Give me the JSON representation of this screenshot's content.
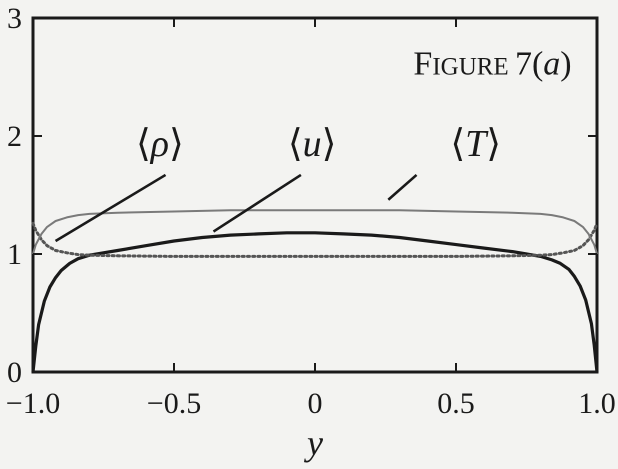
{
  "chart_data": {
    "type": "line",
    "title": "Figure 7(a)",
    "title_parts": {
      "smallcaps_initial": "F",
      "smallcaps_rest": "IGURE",
      "number": "7",
      "panel": "a"
    },
    "xlabel": "y",
    "ylabel": "",
    "xlim": [
      -1.0,
      1.0
    ],
    "ylim": [
      0,
      3
    ],
    "xticks": [
      -1.0,
      -0.5,
      0,
      0.5,
      1.0
    ],
    "xtick_labels": [
      "−1.0",
      "−0.5",
      "0",
      "0.5",
      "1.0"
    ],
    "yticks": [
      0,
      1,
      2,
      3
    ],
    "ytick_labels": [
      "0",
      "1",
      "2",
      "3"
    ],
    "grid": false,
    "legend": "none",
    "series": [
      {
        "name": "⟨u⟩",
        "style": "solid-thick",
        "color": "#1a1a1a",
        "x": [
          -1.0,
          -0.99,
          -0.98,
          -0.96,
          -0.94,
          -0.92,
          -0.9,
          -0.87,
          -0.84,
          -0.8,
          -0.75,
          -0.7,
          -0.6,
          -0.5,
          -0.4,
          -0.3,
          -0.2,
          -0.1,
          0.0,
          0.1,
          0.2,
          0.3,
          0.4,
          0.5,
          0.6,
          0.7,
          0.75,
          0.8,
          0.84,
          0.87,
          0.9,
          0.92,
          0.94,
          0.96,
          0.98,
          0.99,
          1.0
        ],
        "y": [
          0.0,
          0.22,
          0.4,
          0.6,
          0.72,
          0.8,
          0.86,
          0.92,
          0.96,
          0.99,
          1.01,
          1.03,
          1.07,
          1.11,
          1.14,
          1.16,
          1.17,
          1.18,
          1.18,
          1.17,
          1.16,
          1.14,
          1.11,
          1.08,
          1.05,
          1.02,
          1.0,
          0.98,
          0.95,
          0.92,
          0.87,
          0.81,
          0.73,
          0.61,
          0.41,
          0.23,
          0.0
        ]
      },
      {
        "name": "⟨ρ⟩",
        "style": "dotted",
        "color": "#555555",
        "x": [
          -1.0,
          -0.99,
          -0.97,
          -0.95,
          -0.92,
          -0.88,
          -0.84,
          -0.8,
          -0.7,
          -0.5,
          -0.3,
          0.0,
          0.3,
          0.5,
          0.7,
          0.8,
          0.84,
          0.88,
          0.92,
          0.95,
          0.97,
          0.99,
          1.0
        ],
        "y": [
          1.26,
          1.2,
          1.12,
          1.07,
          1.03,
          1.01,
          0.995,
          0.99,
          0.985,
          0.98,
          0.98,
          0.98,
          0.98,
          0.98,
          0.985,
          0.99,
          0.995,
          1.01,
          1.03,
          1.07,
          1.12,
          1.2,
          1.26
        ]
      },
      {
        "name": "⟨T⟩",
        "style": "thin",
        "color": "#7a7a7a",
        "x": [
          -1.0,
          -0.99,
          -0.97,
          -0.95,
          -0.92,
          -0.88,
          -0.84,
          -0.8,
          -0.7,
          -0.5,
          -0.3,
          0.0,
          0.3,
          0.5,
          0.7,
          0.8,
          0.84,
          0.88,
          0.92,
          0.95,
          0.97,
          0.99,
          1.0
        ],
        "y": [
          1.0,
          1.08,
          1.17,
          1.23,
          1.28,
          1.31,
          1.33,
          1.34,
          1.35,
          1.36,
          1.37,
          1.37,
          1.37,
          1.36,
          1.35,
          1.34,
          1.33,
          1.31,
          1.28,
          1.23,
          1.17,
          1.08,
          1.0
        ]
      }
    ],
    "annotations": [
      {
        "series": "⟨ρ⟩",
        "open": "⟨",
        "symbol": "ρ",
        "close": "⟩",
        "label_x": -0.55,
        "label_y": 1.83,
        "line_from": [
          -0.53,
          1.67
        ],
        "line_to": [
          -0.92,
          1.11
        ]
      },
      {
        "series": "⟨u⟩",
        "open": "⟨",
        "symbol": "u",
        "close": "⟩",
        "label_x": -0.01,
        "label_y": 1.83,
        "line_from": [
          -0.05,
          1.67
        ],
        "line_to": [
          -0.36,
          1.19
        ]
      },
      {
        "series": "⟨T⟩",
        "open": "⟨",
        "symbol": "T",
        "close": "⟩",
        "label_x": 0.57,
        "label_y": 1.83,
        "line_from": [
          0.36,
          1.67
        ],
        "line_to": [
          0.26,
          1.46
        ]
      }
    ]
  }
}
